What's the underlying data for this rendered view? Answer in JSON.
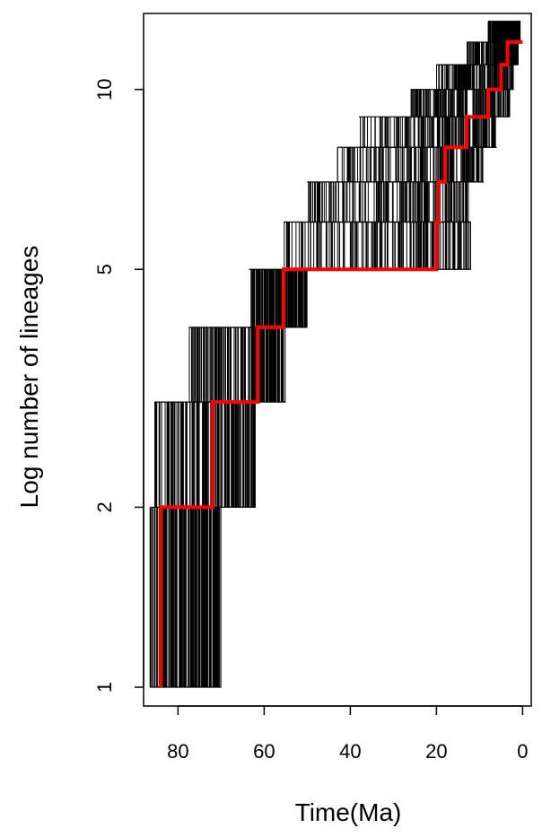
{
  "chart_data": {
    "type": "line",
    "title": "",
    "xlabel": "Time(Ma)",
    "ylabel": "Log number of lineages",
    "x_reversed": true,
    "y_scale": "log",
    "xlim": [
      88,
      -2
    ],
    "ylim": [
      0.93,
      13.4
    ],
    "x_ticks": [
      80,
      60,
      40,
      20,
      0
    ],
    "x_tick_labels": [
      "80",
      "60",
      "40",
      "20",
      "0"
    ],
    "y_ticks": [
      1,
      2,
      5,
      10
    ],
    "y_tick_labels": [
      "1",
      "2",
      "5",
      "10"
    ],
    "grid": false,
    "legend": "none",
    "colors": {
      "highlight": "#ff0000",
      "trees": "#000000",
      "axis": "#000000"
    },
    "series": [
      {
        "style": "highlight",
        "points": [
          [
            84,
            1
          ],
          [
            84,
            2
          ],
          [
            72,
            2
          ],
          [
            72,
            3
          ],
          [
            61.5,
            3
          ],
          [
            61.5,
            4
          ],
          [
            55.5,
            4
          ],
          [
            55.5,
            5
          ],
          [
            20,
            5
          ],
          [
            20,
            6
          ],
          [
            19.5,
            6
          ],
          [
            19.5,
            7
          ],
          [
            18,
            7
          ],
          [
            18,
            8
          ],
          [
            13,
            8
          ],
          [
            13,
            9
          ],
          [
            8,
            9
          ],
          [
            8,
            10
          ],
          [
            5,
            10
          ],
          [
            5,
            11
          ],
          [
            3.5,
            11
          ],
          [
            3.5,
            12
          ],
          [
            0,
            12
          ]
        ]
      }
    ],
    "tree_cloud": [
      {
        "lineages": 1,
        "from_range": [
          86.5,
          70
        ]
      },
      {
        "lineages": 2,
        "from_range": [
          85.5,
          62
        ]
      },
      {
        "lineages": 3,
        "from_range": [
          77.5,
          55
        ]
      },
      {
        "lineages": 4,
        "from_range": [
          63.5,
          50
        ]
      },
      {
        "lineages": 5,
        "from_range": [
          55.5,
          12
        ]
      },
      {
        "lineages": 6,
        "from_range": [
          50,
          12
        ]
      },
      {
        "lineages": 7,
        "from_range": [
          43,
          9
        ]
      },
      {
        "lineages": 8,
        "from_range": [
          38,
          6
        ]
      },
      {
        "lineages": 9,
        "from_range": [
          26,
          3
        ]
      },
      {
        "lineages": 10,
        "from_range": [
          20,
          2
        ]
      },
      {
        "lineages": 11,
        "from_range": [
          13,
          1
        ]
      },
      {
        "lineages": 12,
        "from_range": [
          8,
          0.5
        ]
      }
    ]
  }
}
